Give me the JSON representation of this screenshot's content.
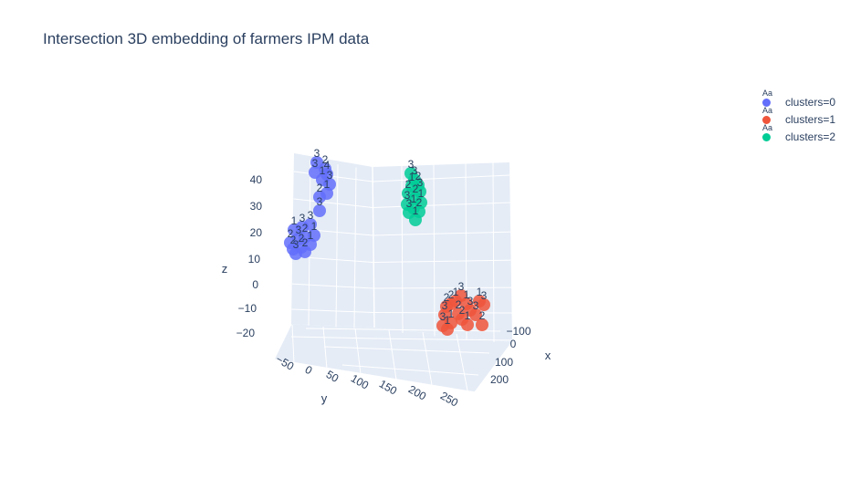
{
  "chart_data": {
    "type": "scatter",
    "title": "Intersection 3D embedding of farmers IPM data",
    "axes": {
      "x": {
        "title": "x",
        "ticks": [
          "−100",
          "0",
          "100",
          "200"
        ]
      },
      "y": {
        "title": "y",
        "ticks": [
          "−50",
          "0",
          "50",
          "100",
          "150",
          "200",
          "250"
        ]
      },
      "z": {
        "title": "z",
        "ticks": [
          "40",
          "30",
          "20",
          "10",
          "0",
          "−10",
          "−20"
        ]
      }
    },
    "legend_placement": "top-right",
    "legend_symbol": "Aa",
    "series": [
      {
        "name": "clusters=0",
        "color": "#636efa",
        "points": [
          {
            "sx": 347,
            "sy": 178,
            "label": "3"
          },
          {
            "sx": 356,
            "sy": 185,
            "label": "2"
          },
          {
            "sx": 358,
            "sy": 191,
            "label": "4"
          },
          {
            "sx": 345,
            "sy": 189,
            "label": "3"
          },
          {
            "sx": 353,
            "sy": 197,
            "label": "1"
          },
          {
            "sx": 361,
            "sy": 202,
            "label": "3"
          },
          {
            "sx": 358,
            "sy": 212,
            "label": "1"
          },
          {
            "sx": 350,
            "sy": 216,
            "label": "2"
          },
          {
            "sx": 350,
            "sy": 231,
            "label": "3"
          },
          {
            "sx": 340,
            "sy": 246,
            "label": "3"
          },
          {
            "sx": 331,
            "sy": 249,
            "label": "3"
          },
          {
            "sx": 322,
            "sy": 252,
            "label": "1"
          },
          {
            "sx": 344,
            "sy": 258,
            "label": "1"
          },
          {
            "sx": 334,
            "sy": 260,
            "label": "2"
          },
          {
            "sx": 327,
            "sy": 262,
            "label": "3"
          },
          {
            "sx": 318,
            "sy": 266,
            "label": "2"
          },
          {
            "sx": 340,
            "sy": 268,
            "label": "1"
          },
          {
            "sx": 330,
            "sy": 271,
            "label": "2"
          },
          {
            "sx": 321,
            "sy": 273,
            "label": "2"
          },
          {
            "sx": 334,
            "sy": 276,
            "label": "2"
          },
          {
            "sx": 324,
            "sy": 278,
            "label": "3"
          }
        ]
      },
      {
        "name": "clusters=1",
        "color": "#ef553b",
        "points": [
          {
            "sx": 505,
            "sy": 324,
            "label": "3"
          },
          {
            "sx": 499,
            "sy": 330,
            "label": "1"
          },
          {
            "sx": 494,
            "sy": 333,
            "label": "2"
          },
          {
            "sx": 489,
            "sy": 336,
            "label": "2"
          },
          {
            "sx": 511,
            "sy": 333,
            "label": "1"
          },
          {
            "sx": 525,
            "sy": 330,
            "label": "1"
          },
          {
            "sx": 530,
            "sy": 334,
            "label": "3"
          },
          {
            "sx": 515,
            "sy": 340,
            "label": "3"
          },
          {
            "sx": 502,
            "sy": 344,
            "label": "2"
          },
          {
            "sx": 487,
            "sy": 345,
            "label": "3"
          },
          {
            "sx": 521,
            "sy": 345,
            "label": "3"
          },
          {
            "sx": 506,
            "sy": 350,
            "label": "2"
          },
          {
            "sx": 494,
            "sy": 354,
            "label": "1"
          },
          {
            "sx": 485,
            "sy": 357,
            "label": "3"
          },
          {
            "sx": 528,
            "sy": 356,
            "label": "2"
          },
          {
            "sx": 512,
            "sy": 356,
            "label": "1"
          },
          {
            "sx": 490,
            "sy": 361,
            "label": "1"
          }
        ]
      },
      {
        "name": "clusters=2",
        "color": "#00cc96",
        "points": [
          {
            "sx": 450,
            "sy": 190,
            "label": "3"
          },
          {
            "sx": 454,
            "sy": 197,
            "label": "3"
          },
          {
            "sx": 458,
            "sy": 203,
            "label": "2"
          },
          {
            "sx": 451,
            "sy": 204,
            "label": "1"
          },
          {
            "sx": 460,
            "sy": 210,
            "label": "3"
          },
          {
            "sx": 447,
            "sy": 212,
            "label": "2"
          },
          {
            "sx": 455,
            "sy": 217,
            "label": "2"
          },
          {
            "sx": 461,
            "sy": 222,
            "label": "1"
          },
          {
            "sx": 446,
            "sy": 224,
            "label": "3"
          },
          {
            "sx": 453,
            "sy": 228,
            "label": "1"
          },
          {
            "sx": 459,
            "sy": 232,
            "label": "2"
          },
          {
            "sx": 448,
            "sy": 233,
            "label": "3"
          },
          {
            "sx": 455,
            "sy": 241,
            "label": "1"
          }
        ]
      }
    ]
  }
}
